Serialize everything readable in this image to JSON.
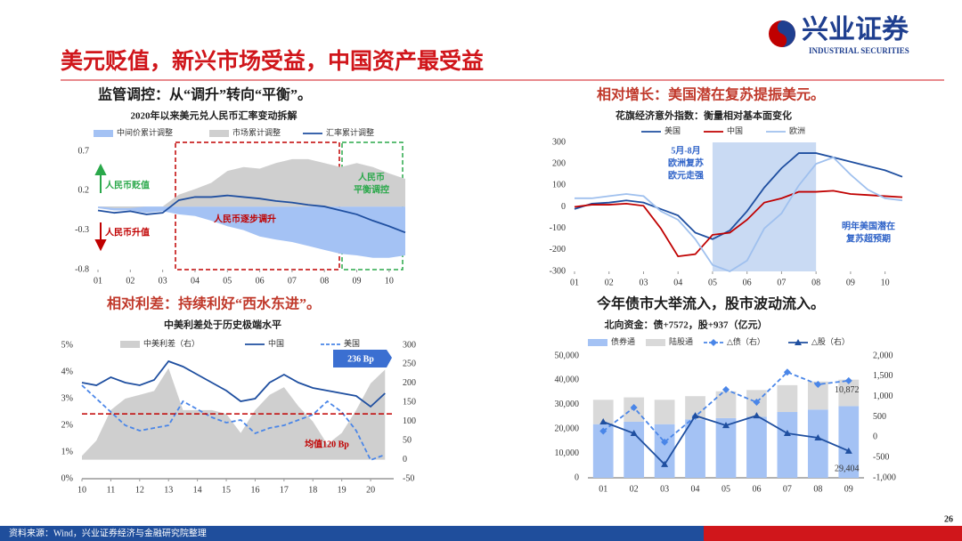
{
  "header": {
    "title": "美元贬值，新兴市场受益，中国资产最受益",
    "logo": "兴业证券",
    "logo_en": "INDUSTRIAL SECURITIES"
  },
  "footer": {
    "source": "资料来源：Wind，兴业证券经济与金融研究院整理",
    "page": "26"
  },
  "chart_data": [
    {
      "type": "area",
      "heading": "监管调控：从“调升”转向“平衡”。",
      "title": "2020年以来美元兑人民币汇率变动拆解",
      "xlim": [
        1,
        10.5
      ],
      "xticks": [
        {
          "value": 1,
          "label": "01"
        },
        {
          "value": 2,
          "label": "02"
        },
        {
          "value": 3,
          "label": "03"
        },
        {
          "value": 4,
          "label": "04"
        },
        {
          "value": 5,
          "label": "05"
        },
        {
          "value": 6,
          "label": "06"
        },
        {
          "value": 7,
          "label": "07"
        },
        {
          "value": 8,
          "label": "08"
        },
        {
          "value": 9,
          "label": "09"
        },
        {
          "value": 10,
          "label": "10"
        }
      ],
      "ylim": [
        -0.8,
        0.7
      ],
      "yticks": [
        0.7,
        0.2,
        -0.3,
        -0.8
      ],
      "x": [
        1,
        1.5,
        2,
        2.5,
        3,
        3.5,
        4,
        4.5,
        5,
        5.5,
        6,
        6.5,
        7,
        7.5,
        8,
        8.5,
        9,
        9.5,
        10,
        10.5
      ],
      "series": [
        {
          "name": "中间价累计调整",
          "color": "#a4c2f4",
          "mark": "area",
          "values": [
            -0.02,
            -0.05,
            -0.05,
            -0.08,
            -0.06,
            -0.1,
            -0.12,
            -0.18,
            -0.25,
            -0.3,
            -0.38,
            -0.42,
            -0.45,
            -0.5,
            -0.55,
            -0.6,
            -0.62,
            -0.65,
            -0.65,
            -0.62
          ]
        },
        {
          "name": "市场累计调整",
          "color": "#cfcfcf",
          "mark": "area",
          "values": [
            0,
            -0.02,
            -0.02,
            0,
            0,
            0.15,
            0.22,
            0.3,
            0.45,
            0.5,
            0.48,
            0.55,
            0.6,
            0.6,
            0.55,
            0.5,
            0.55,
            0.5,
            0.42,
            0.35
          ]
        },
        {
          "name": "汇率累计调整",
          "color": "#1f4fa0",
          "mark": "line",
          "values": [
            -0.05,
            -0.08,
            -0.06,
            -0.1,
            -0.08,
            0.08,
            0.12,
            0.12,
            0.14,
            0.12,
            0.1,
            0.07,
            0.05,
            0.02,
            0,
            -0.05,
            -0.1,
            -0.18,
            -0.25,
            -0.33
          ]
        }
      ],
      "annotations": [
        [
          "人民币贬值"
        ],
        [
          "人民币升值"
        ],
        [
          "人民币逐步调升"
        ],
        [
          "人民币",
          "平衡调控"
        ]
      ]
    },
    {
      "type": "line",
      "heading": "相对增长：美国潜在复苏提振美元。",
      "title": "花旗经济意外指数：衡量相对基本面变化",
      "xlim": [
        1,
        10.5
      ],
      "xticks": [
        {
          "value": 1,
          "label": "01"
        },
        {
          "value": 2,
          "label": "02"
        },
        {
          "value": 3,
          "label": "03"
        },
        {
          "value": 4,
          "label": "04"
        },
        {
          "value": 5,
          "label": "05"
        },
        {
          "value": 6,
          "label": "06"
        },
        {
          "value": 7,
          "label": "07"
        },
        {
          "value": 8,
          "label": "08"
        },
        {
          "value": 9,
          "label": "09"
        },
        {
          "value": 10,
          "label": "10"
        }
      ],
      "ylim": [
        -300,
        300
      ],
      "yticks": [
        300,
        200,
        100,
        0,
        -100,
        -200,
        -300
      ],
      "shade": [
        5,
        8
      ],
      "shade_color": "#c9daf3",
      "x": [
        1,
        1.5,
        2,
        2.5,
        3,
        3.5,
        4,
        4.5,
        5,
        5.5,
        6,
        6.5,
        7,
        7.5,
        8,
        8.5,
        9,
        9.5,
        10,
        10.5
      ],
      "series": [
        {
          "name": "美国",
          "color": "#1f4fa0",
          "mark": "line",
          "values": [
            -10,
            15,
            20,
            30,
            20,
            -10,
            -40,
            -120,
            -150,
            -110,
            -20,
            90,
            180,
            250,
            250,
            230,
            210,
            190,
            170,
            140
          ]
        },
        {
          "name": "中国",
          "color": "#c00000",
          "mark": "line",
          "values": [
            0,
            10,
            10,
            15,
            5,
            -100,
            -230,
            -220,
            -130,
            -120,
            -60,
            20,
            40,
            70,
            70,
            75,
            60,
            55,
            50,
            45
          ]
        },
        {
          "name": "欧洲",
          "color": "#9fc0ee",
          "mark": "line",
          "values": [
            40,
            40,
            50,
            60,
            50,
            -20,
            -60,
            -150,
            -270,
            -300,
            -250,
            -100,
            -30,
            100,
            200,
            230,
            150,
            80,
            40,
            30
          ]
        }
      ],
      "annotations": [
        [
          "5月-8月",
          "欧洲复苏",
          "欧元走强"
        ],
        [
          "明年美国潜在",
          "复苏超预期"
        ]
      ]
    },
    {
      "type": "area",
      "heading": "相对利差：持续利好“西水东进”。",
      "title": "中美利差处于历史极端水平",
      "xlim": [
        10,
        20.8
      ],
      "xticks": [
        10,
        11,
        12,
        13,
        14,
        15,
        16,
        17,
        18,
        19,
        20
      ],
      "ylim": [
        0,
        5
      ],
      "yticks": [
        {
          "value": 0,
          "label": "0%"
        },
        {
          "value": 1,
          "label": "1%"
        },
        {
          "value": 2,
          "label": "2%"
        },
        {
          "value": 3,
          "label": "3%"
        },
        {
          "value": 4,
          "label": "4%"
        },
        {
          "value": 5,
          "label": "5%"
        }
      ],
      "y2lim": [
        -50,
        300
      ],
      "y2ticks": [
        -50,
        0,
        50,
        100,
        150,
        200,
        250,
        300
      ],
      "hline": {
        "value": 120,
        "axis": "y2",
        "color": "#c00000"
      },
      "x": [
        10,
        10.5,
        11,
        11.5,
        12,
        12.5,
        13,
        13.5,
        14,
        14.5,
        15,
        15.5,
        16,
        16.5,
        17,
        17.5,
        18,
        18.5,
        19,
        19.5,
        20,
        20.5
      ],
      "series": [
        {
          "name": "中美利差（右）",
          "color": "#cfcfcf",
          "mark": "area",
          "axis": "y2",
          "values": [
            10,
            50,
            130,
            160,
            170,
            180,
            240,
            130,
            130,
            130,
            120,
            70,
            130,
            170,
            190,
            140,
            100,
            40,
            70,
            130,
            200,
            236
          ]
        },
        {
          "name": "中国",
          "color": "#1f4fa0",
          "mark": "line",
          "values": [
            3.6,
            3.5,
            3.8,
            3.6,
            3.5,
            3.7,
            4.4,
            4.2,
            3.9,
            3.6,
            3.3,
            2.9,
            3.0,
            3.6,
            3.9,
            3.6,
            3.4,
            3.3,
            3.2,
            3.1,
            2.7,
            3.2
          ]
        },
        {
          "name": "美国",
          "color": "#4a86e8",
          "mark": "line",
          "dash": true,
          "values": [
            3.5,
            3.0,
            2.5,
            2.0,
            1.8,
            1.9,
            2.0,
            2.9,
            2.6,
            2.3,
            2.1,
            2.2,
            1.7,
            1.9,
            2.0,
            2.2,
            2.4,
            2.9,
            2.5,
            1.8,
            0.7,
            0.9
          ]
        }
      ],
      "annotations": [
        [
          "236 Bp"
        ],
        [
          "均值120 Bp"
        ]
      ]
    },
    {
      "type": "bar",
      "heading": "今年债市大举流入，股市波动流入。",
      "title": "北向资金：债+7572，股+937（亿元）",
      "categories": [
        "01",
        "02",
        "03",
        "04",
        "05",
        "06",
        "07",
        "08",
        "09"
      ],
      "ylim": [
        0,
        50000
      ],
      "yticks": [
        0,
        {
          "value": 10000,
          "label": "10,000"
        },
        {
          "value": 20000,
          "label": "20,000"
        },
        {
          "value": 30000,
          "label": "30,000"
        },
        {
          "value": 40000,
          "label": "40,000"
        },
        {
          "value": 50000,
          "label": "50,000"
        }
      ],
      "y2lim": [
        -1000,
        2000
      ],
      "y2ticks": [
        {
          "value": -1000,
          "label": "-1,000"
        },
        -500,
        0,
        500,
        {
          "value": 1000,
          "label": "1,000"
        },
        {
          "value": 1500,
          "label": "1,500"
        },
        {
          "value": 2000,
          "label": "2,000"
        }
      ],
      "series": [
        {
          "name": "债券通",
          "color": "#a4c2f4",
          "mark": "bar",
          "values": [
            22000,
            23000,
            22000,
            24000,
            24500,
            25000,
            27000,
            28000,
            29404
          ],
          "value_labels": [
            null,
            null,
            null,
            null,
            null,
            null,
            null,
            null,
            "29,404"
          ]
        },
        {
          "name": "陆股通",
          "color": "#d9d9d9",
          "mark": "bar",
          "values": [
            10000,
            10000,
            10000,
            9500,
            11000,
            11000,
            11000,
            11500,
            10872
          ],
          "value_labels": [
            null,
            null,
            null,
            null,
            null,
            null,
            null,
            null,
            "10,872"
          ]
        },
        {
          "name": "△债（右）",
          "color": "#4a86e8",
          "mark": "line",
          "dash": true,
          "marker": "diamond",
          "axis": "y2",
          "values": [
            150,
            730,
            -120,
            510,
            1170,
            860,
            1600,
            1300,
            1390
          ]
        },
        {
          "name": "△股（右）",
          "color": "#1f4fa0",
          "mark": "line",
          "marker": "triangle",
          "axis": "y2",
          "values": [
            380,
            95,
            -670,
            530,
            290,
            530,
            95,
            -15,
            -340
          ]
        }
      ]
    }
  ]
}
